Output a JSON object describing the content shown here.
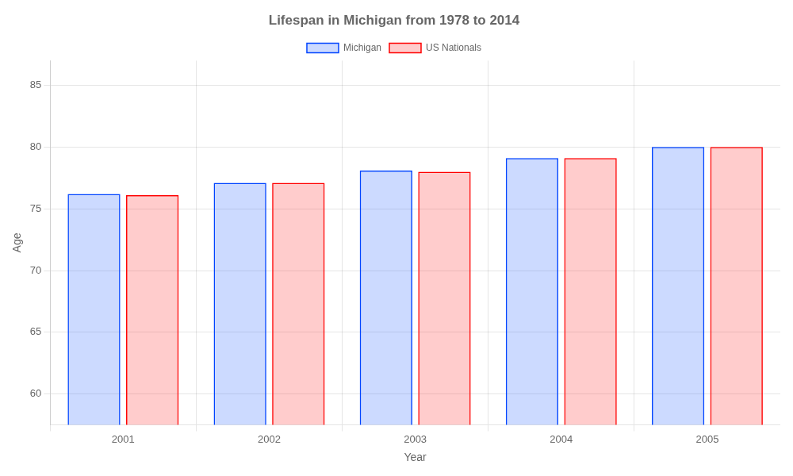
{
  "chart_data": {
    "type": "bar",
    "title": "Lifespan in Michigan from 1978 to 2014",
    "x_label": "Year",
    "y_label": "Age",
    "categories": [
      "2001",
      "2002",
      "2003",
      "2004",
      "2005"
    ],
    "series": [
      {
        "name": "Michigan",
        "color": "#0044ff",
        "values": [
          76.2,
          77.1,
          78.1,
          79.1,
          80.0
        ]
      },
      {
        "name": "US Nationals",
        "color": "#ff0000",
        "values": [
          76.1,
          77.1,
          78.0,
          79.1,
          80.0
        ]
      }
    ],
    "ylim": [
      57.5,
      87
    ],
    "yticks": [
      60,
      65,
      70,
      75,
      80,
      85
    ],
    "grid": true,
    "legend": "top"
  }
}
